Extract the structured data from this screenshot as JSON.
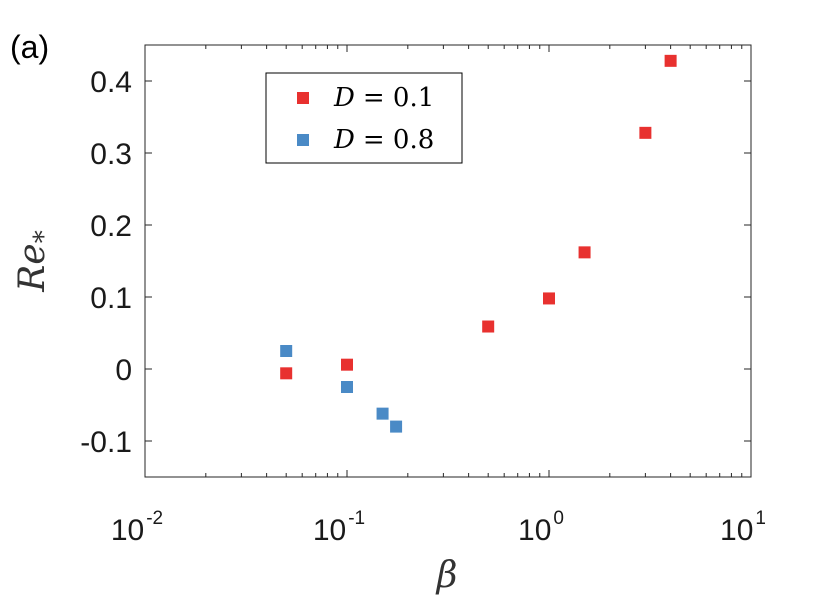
{
  "panel_label": "(a)",
  "chart_data": {
    "type": "scatter",
    "title": "",
    "xlabel": "β",
    "ylabel": "Re*",
    "ylabel_main": "Re",
    "ylabel_sub": "*",
    "x_scale": "log",
    "xlim": [
      0.01,
      10
    ],
    "ylim": [
      -0.15,
      0.45
    ],
    "x_ticks": [
      {
        "value": 0.01,
        "base": "10",
        "exp": "-2"
      },
      {
        "value": 0.1,
        "base": "10",
        "exp": "-1"
      },
      {
        "value": 1,
        "base": "10",
        "exp": "0"
      },
      {
        "value": 10,
        "base": "10",
        "exp": "1"
      }
    ],
    "y_ticks": [
      {
        "value": -0.1,
        "label": "-0.1"
      },
      {
        "value": 0,
        "label": "0"
      },
      {
        "value": 0.1,
        "label": "0.1"
      },
      {
        "value": 0.2,
        "label": "0.2"
      },
      {
        "value": 0.3,
        "label": "0.3"
      },
      {
        "value": 0.4,
        "label": "0.4"
      }
    ],
    "grid": false,
    "legend_position": "top-left",
    "series": [
      {
        "name": "D = 0.1",
        "legend_var": "D",
        "legend_value": "= 0.1",
        "color": "#e8312f",
        "marker": "square",
        "points": [
          {
            "x": 0.05,
            "y": -0.006
          },
          {
            "x": 0.1,
            "y": 0.006
          },
          {
            "x": 0.5,
            "y": 0.059
          },
          {
            "x": 1.0,
            "y": 0.098
          },
          {
            "x": 1.5,
            "y": 0.162
          },
          {
            "x": 3.0,
            "y": 0.328
          },
          {
            "x": 4.0,
            "y": 0.428
          }
        ]
      },
      {
        "name": "D = 0.8",
        "legend_var": "D",
        "legend_value": "= 0.8",
        "color": "#4a8ac6",
        "marker": "square",
        "points": [
          {
            "x": 0.05,
            "y": 0.025
          },
          {
            "x": 0.1,
            "y": -0.025
          },
          {
            "x": 0.15,
            "y": -0.062
          },
          {
            "x": 0.175,
            "y": -0.08
          }
        ]
      }
    ]
  }
}
